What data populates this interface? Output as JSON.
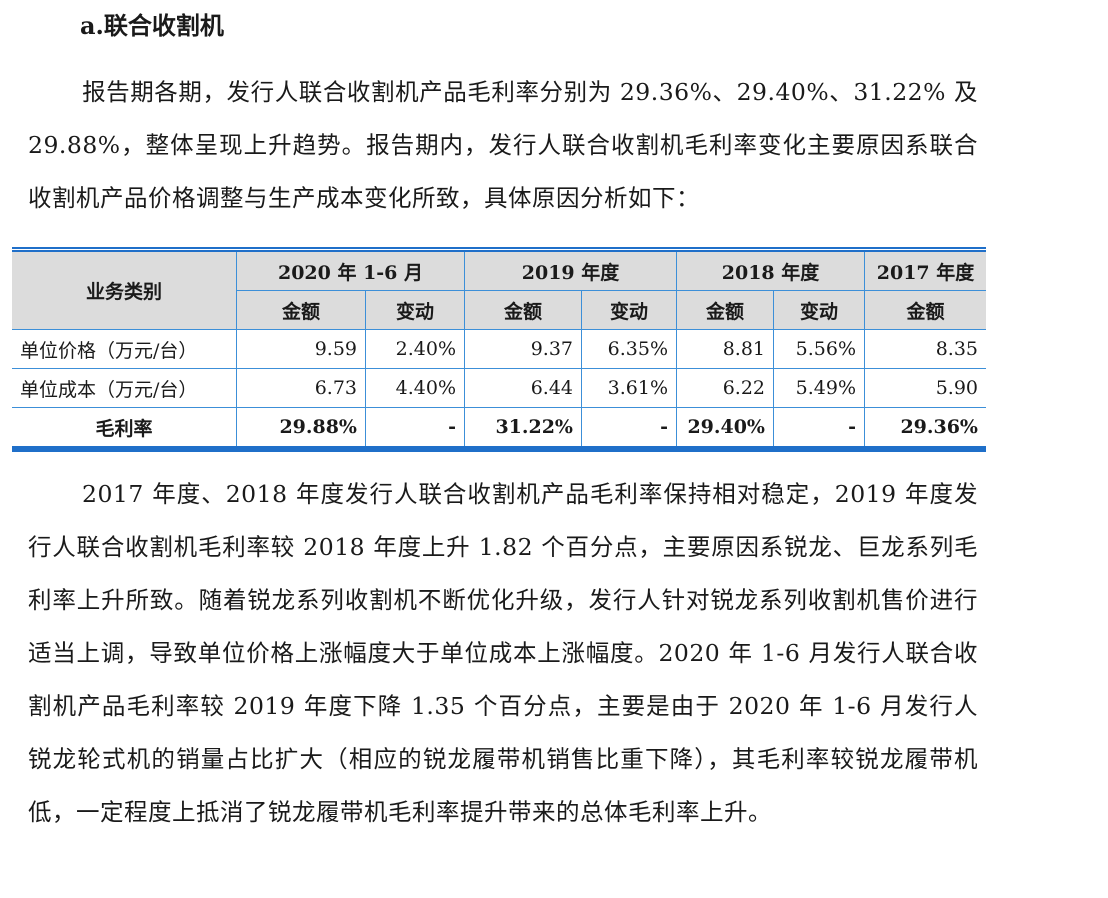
{
  "heading": "a.联合收割机",
  "para1": "报告期各期，发行人联合收割机产品毛利率分别为 29.36%、29.40%、31.22% 及 29.88%，整体呈现上升趋势。报告期内，发行人联合收割机毛利率变化主要原因系联合收割机产品价格调整与生产成本变化所致，具体原因分析如下：",
  "table": {
    "corner": "业务类别",
    "periods": [
      "2020 年 1-6 月",
      "2019 年度",
      "2018 年度",
      "2017 年度"
    ],
    "sub": {
      "amount": "金额",
      "change": "变动"
    },
    "rows": [
      {
        "label": "单位价格（万元/台）",
        "cells": [
          "9.59",
          "2.40%",
          "9.37",
          "6.35%",
          "8.81",
          "5.56%",
          "8.35"
        ]
      },
      {
        "label": "单位成本（万元/台）",
        "cells": [
          "6.73",
          "4.40%",
          "6.44",
          "3.61%",
          "6.22",
          "5.49%",
          "5.90"
        ]
      },
      {
        "label": "毛利率",
        "cells": [
          "29.88%",
          "-",
          "31.22%",
          "-",
          "29.40%",
          "-",
          "29.36%"
        ]
      }
    ]
  },
  "para2": "2017 年度、2018 年度发行人联合收割机产品毛利率保持相对稳定，2019 年度发行人联合收割机毛利率较 2018 年度上升 1.82 个百分点，主要原因系锐龙、巨龙系列毛利率上升所致。随着锐龙系列收割机不断优化升级，发行人针对锐龙系列收割机售价进行适当上调，导致单位价格上涨幅度大于单位成本上涨幅度。2020 年 1-6 月发行人联合收割机产品毛利率较 2019 年度下降 1.35 个百分点，主要是由于 2020 年 1-6 月发行人锐龙轮式机的销量占比扩大（相应的锐龙履带机销售比重下降），其毛利率较锐龙履带机低，一定程度上抵消了锐龙履带机毛利率提升带来的总体毛利率上升。"
}
